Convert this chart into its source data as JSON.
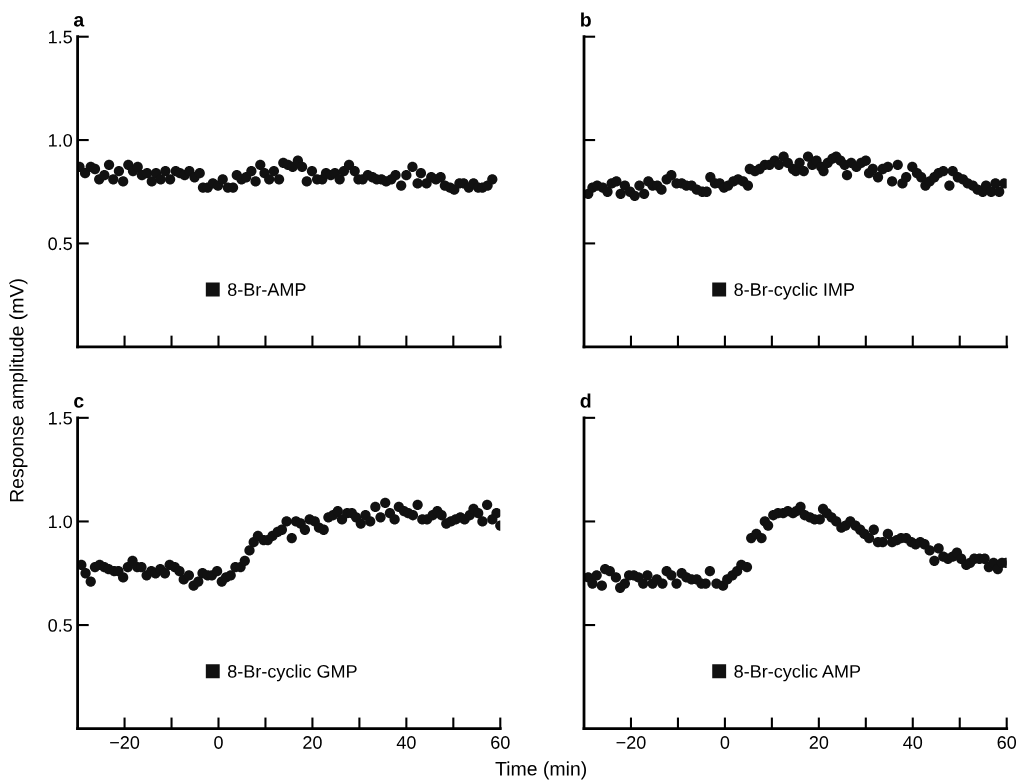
{
  "chart_data": [
    {
      "type": "scatter",
      "title": "a",
      "ylabel": "Response amplitude (mV)",
      "xlim": [
        -30,
        60
      ],
      "ylim": [
        0,
        1.5
      ],
      "marker": "circle",
      "legend": "lower left",
      "tick_labels": "y",
      "xticks": [
        {
          "value": -20,
          "label": null
        },
        {
          "value": -10,
          "label": null
        },
        {
          "value": 0,
          "label": null
        },
        {
          "value": 10,
          "label": null
        },
        {
          "value": 20,
          "label": null
        },
        {
          "value": 30,
          "label": null
        },
        {
          "value": 40,
          "label": null
        },
        {
          "value": 50,
          "label": null
        },
        {
          "value": 60,
          "label": null
        }
      ],
      "yticks": [
        {
          "value": 0.5,
          "label": "0.5"
        },
        {
          "value": 1.0,
          "label": "1.0"
        },
        {
          "value": 1.5,
          "label": "1.5"
        }
      ],
      "series": [
        {
          "name": "8-Br-AMP",
          "color": "#111111",
          "x": [
            -29.6,
            -28.4,
            -27.2,
            -26.3,
            -25.4,
            -24.3,
            -23.3,
            -22.4,
            -21.2,
            -20.3,
            -19.2,
            -18.2,
            -17.2,
            -16.3,
            -15.2,
            -14.2,
            -13.3,
            -12.3,
            -11.3,
            -10.3,
            -9.1,
            -8.2,
            -7.2,
            -6.2,
            -5.1,
            -4.0,
            -3.3,
            -2.3,
            -1.2,
            -0.1,
            0.9,
            2.0,
            3.1,
            3.9,
            4.9,
            5.9,
            7.0,
            7.9,
            8.9,
            9.8,
            10.8,
            11.8,
            12.9,
            13.8,
            14.8,
            15.8,
            16.9,
            17.8,
            18.8,
            19.9,
            21.0,
            22.1,
            22.9,
            23.9,
            24.8,
            25.8,
            26.7,
            27.8,
            29.0,
            29.8,
            30.7,
            31.8,
            32.8,
            33.7,
            34.7,
            35.7,
            36.8,
            37.7,
            38.9,
            40.0,
            41.3,
            42.4,
            43.1,
            44.3,
            45.3,
            46.3,
            47.3,
            48.2,
            49.3,
            50.2,
            51.3,
            52.2,
            53.3,
            54.3,
            55.3,
            56.2,
            57.3,
            58.3
          ],
          "values": [
            0.87,
            0.84,
            0.87,
            0.86,
            0.81,
            0.83,
            0.88,
            0.81,
            0.85,
            0.8,
            0.88,
            0.85,
            0.87,
            0.83,
            0.84,
            0.8,
            0.84,
            0.81,
            0.85,
            0.81,
            0.85,
            0.84,
            0.83,
            0.85,
            0.82,
            0.84,
            0.77,
            0.77,
            0.79,
            0.78,
            0.81,
            0.77,
            0.77,
            0.83,
            0.81,
            0.82,
            0.85,
            0.8,
            0.88,
            0.84,
            0.81,
            0.85,
            0.81,
            0.89,
            0.88,
            0.87,
            0.9,
            0.87,
            0.8,
            0.85,
            0.81,
            0.81,
            0.84,
            0.83,
            0.84,
            0.81,
            0.85,
            0.88,
            0.85,
            0.81,
            0.81,
            0.83,
            0.82,
            0.81,
            0.81,
            0.8,
            0.81,
            0.83,
            0.78,
            0.83,
            0.87,
            0.79,
            0.84,
            0.79,
            0.82,
            0.81,
            0.82,
            0.78,
            0.77,
            0.76,
            0.79,
            0.79,
            0.77,
            0.79,
            0.77,
            0.77,
            0.78,
            0.81
          ]
        }
      ]
    },
    {
      "type": "scatter",
      "title": "b",
      "xlim": [
        -30,
        60
      ],
      "ylim": [
        0,
        1.5
      ],
      "marker": "circle",
      "legend": "lower left",
      "tick_labels": false,
      "xticks": [
        {
          "value": -20,
          "label": null
        },
        {
          "value": -10,
          "label": null
        },
        {
          "value": 0,
          "label": null
        },
        {
          "value": 10,
          "label": null
        },
        {
          "value": 20,
          "label": null
        },
        {
          "value": 30,
          "label": null
        },
        {
          "value": 40,
          "label": null
        },
        {
          "value": 50,
          "label": null
        },
        {
          "value": 60,
          "label": null
        }
      ],
      "yticks": [
        {
          "value": 0.5,
          "label": null
        },
        {
          "value": 1.0,
          "label": null
        },
        {
          "value": 1.5,
          "label": null
        }
      ],
      "series": [
        {
          "name": "8-Br-cyclic IMP",
          "color": "#111111",
          "x": [
            -29.1,
            -28.2,
            -27.2,
            -26.0,
            -25.0,
            -24.1,
            -23.1,
            -22.2,
            -21.3,
            -20.2,
            -19.2,
            -18.2,
            -17.2,
            -16.3,
            -15.4,
            -14.4,
            -13.5,
            -12.4,
            -11.4,
            -10.3,
            -9.2,
            -8.2,
            -7.1,
            -6.0,
            -4.8,
            -3.9,
            -3.1,
            -2.1,
            -1.1,
            -0.2,
            0.7,
            1.8,
            2.8,
            3.9,
            4.9,
            5.3,
            6.4,
            7.4,
            8.5,
            9.5,
            10.6,
            11.5,
            12.5,
            13.4,
            14.5,
            15.1,
            15.9,
            16.8,
            17.7,
            18.6,
            19.5,
            20.5,
            21.0,
            21.9,
            22.9,
            23.7,
            24.6,
            25.5,
            26.0,
            26.9,
            28.0,
            29.0,
            30.0,
            30.7,
            31.5,
            32.6,
            33.6,
            34.7,
            35.6,
            36.8,
            37.8,
            38.6,
            39.9,
            40.9,
            41.8,
            42.7,
            43.6,
            44.6,
            45.5,
            46.5,
            47.8,
            48.5,
            49.6,
            50.7,
            51.7,
            52.8,
            53.8,
            54.9,
            55.6,
            56.7,
            57.6,
            58.4,
            59.5
          ],
          "values": [
            0.74,
            0.77,
            0.78,
            0.77,
            0.75,
            0.79,
            0.8,
            0.74,
            0.78,
            0.75,
            0.73,
            0.78,
            0.74,
            0.8,
            0.78,
            0.78,
            0.76,
            0.81,
            0.83,
            0.79,
            0.79,
            0.78,
            0.78,
            0.76,
            0.75,
            0.75,
            0.82,
            0.79,
            0.79,
            0.77,
            0.78,
            0.8,
            0.81,
            0.8,
            0.78,
            0.86,
            0.85,
            0.86,
            0.88,
            0.88,
            0.9,
            0.88,
            0.92,
            0.89,
            0.86,
            0.85,
            0.89,
            0.85,
            0.92,
            0.88,
            0.9,
            0.87,
            0.85,
            0.89,
            0.91,
            0.92,
            0.9,
            0.88,
            0.83,
            0.89,
            0.87,
            0.89,
            0.9,
            0.84,
            0.86,
            0.82,
            0.86,
            0.87,
            0.8,
            0.88,
            0.79,
            0.82,
            0.87,
            0.84,
            0.82,
            0.78,
            0.8,
            0.82,
            0.84,
            0.85,
            0.78,
            0.85,
            0.82,
            0.81,
            0.79,
            0.78,
            0.76,
            0.75,
            0.78,
            0.75,
            0.79,
            0.75,
            0.79
          ]
        }
      ]
    },
    {
      "type": "scatter",
      "title": "c",
      "xlabel": "Time (min)",
      "xlim": [
        -30,
        60
      ],
      "ylim": [
        0,
        1.5
      ],
      "marker": "circle",
      "legend": "lower left",
      "xticks": [
        {
          "value": -20,
          "label": "−20"
        },
        {
          "value": -10,
          "label": null
        },
        0,
        {
          "value": 10,
          "label": null
        },
        20,
        {
          "value": 30,
          "label": null
        },
        40,
        {
          "value": 50,
          "label": null
        },
        60
      ],
      "yticks": [
        {
          "value": 0.5,
          "label": "0.5"
        },
        {
          "value": 1.0,
          "label": "1.0"
        },
        {
          "value": 1.5,
          "label": "1.5"
        }
      ],
      "series": [
        {
          "name": "8-Br-cyclic GMP",
          "color": "#111111",
          "x": [
            -29.2,
            -28.3,
            -27.2,
            -26.3,
            -25.3,
            -24.3,
            -23.4,
            -22.2,
            -21.3,
            -20.3,
            -19.3,
            -18.3,
            -17.3,
            -16.4,
            -15.3,
            -14.3,
            -13.4,
            -12.4,
            -11.4,
            -10.4,
            -9.3,
            -8.3,
            -7.4,
            -6.3,
            -5.3,
            -4.3,
            -3.4,
            -2.3,
            -1.4,
            -0.3,
            0.7,
            1.6,
            2.6,
            3.6,
            4.7,
            5.6,
            6.6,
            7.5,
            8.4,
            9.6,
            10.5,
            11.5,
            12.6,
            13.5,
            14.5,
            15.6,
            16.5,
            17.5,
            18.4,
            19.4,
            20.5,
            21.4,
            22.4,
            23.4,
            24.4,
            25.4,
            26.3,
            27.4,
            28.4,
            29.3,
            30.3,
            31.3,
            32.3,
            33.4,
            34.5,
            35.5,
            36.5,
            37.5,
            38.4,
            39.5,
            40.4,
            41.4,
            42.4,
            43.4,
            44.4,
            45.6,
            46.6,
            47.5,
            48.5,
            49.5,
            50.5,
            51.5,
            52.4,
            53.5,
            54.3,
            55.3,
            56.2,
            57.2,
            58.3,
            59.2,
            60.0
          ],
          "values": [
            0.79,
            0.75,
            0.71,
            0.78,
            0.79,
            0.78,
            0.77,
            0.76,
            0.76,
            0.73,
            0.78,
            0.81,
            0.78,
            0.78,
            0.74,
            0.76,
            0.75,
            0.77,
            0.75,
            0.79,
            0.78,
            0.76,
            0.72,
            0.74,
            0.69,
            0.71,
            0.75,
            0.74,
            0.74,
            0.76,
            0.71,
            0.73,
            0.74,
            0.78,
            0.78,
            0.81,
            0.86,
            0.9,
            0.93,
            0.91,
            0.91,
            0.93,
            0.95,
            0.96,
            1.0,
            0.92,
            1.0,
            0.99,
            0.96,
            1.01,
            1.0,
            0.97,
            0.96,
            1.02,
            1.03,
            1.05,
            1.01,
            1.04,
            1.04,
            1.02,
            0.99,
            1.03,
            1.0,
            1.07,
            1.02,
            1.09,
            1.04,
            1.01,
            1.07,
            1.05,
            1.04,
            1.03,
            1.08,
            1.01,
            1.01,
            1.03,
            1.05,
            1.03,
            0.99,
            1.0,
            1.01,
            1.02,
            1.01,
            1.03,
            1.06,
            1.04,
            1.0,
            1.08,
            1.01,
            1.04,
            0.98
          ]
        }
      ]
    },
    {
      "type": "scatter",
      "title": "d",
      "xlim": [
        -30,
        60
      ],
      "ylim": [
        0,
        1.5
      ],
      "marker": "circle",
      "legend": "lower left",
      "tick_labels": "x",
      "xticks": [
        {
          "value": -20,
          "label": "−20"
        },
        {
          "value": -10,
          "label": null
        },
        0,
        {
          "value": 10,
          "label": null
        },
        20,
        {
          "value": 30,
          "label": null
        },
        40,
        {
          "value": 50,
          "label": null
        },
        60
      ],
      "yticks": [
        {
          "value": 0.5,
          "label": null
        },
        {
          "value": 1.0,
          "label": null
        },
        {
          "value": 1.5,
          "label": null
        }
      ],
      "series": [
        {
          "name": "8-Br-cyclic AMP",
          "color": "#111111",
          "x": [
            -29.1,
            -28.2,
            -27.3,
            -26.2,
            -25.5,
            -24.5,
            -23.2,
            -22.3,
            -21.3,
            -20.4,
            -19.4,
            -18.4,
            -17.4,
            -16.5,
            -15.4,
            -14.5,
            -13.3,
            -12.4,
            -11.4,
            -10.3,
            -9.2,
            -8.2,
            -7.1,
            -6.0,
            -5.0,
            -4.1,
            -3.2,
            -1.8,
            -0.4,
            0.5,
            1.6,
            2.6,
            3.5,
            4.7,
            5.6,
            6.7,
            7.8,
            8.5,
            9.2,
            10.3,
            11.3,
            12.4,
            13.4,
            14.5,
            15.2,
            16.1,
            17.0,
            18.1,
            19.1,
            20.2,
            20.9,
            21.7,
            22.7,
            23.7,
            24.8,
            25.7,
            26.7,
            27.8,
            28.8,
            29.7,
            30.7,
            31.7,
            32.6,
            33.6,
            34.7,
            35.6,
            36.6,
            37.5,
            38.6,
            39.7,
            40.6,
            41.6,
            42.5,
            43.6,
            44.6,
            45.5,
            46.5,
            47.5,
            48.5,
            49.4,
            50.3,
            51.4,
            52.2,
            53.1,
            54.2,
            55.3,
            56.2,
            57.2,
            58.1,
            59.0,
            59.9
          ],
          "values": [
            0.73,
            0.7,
            0.74,
            0.69,
            0.77,
            0.76,
            0.73,
            0.68,
            0.7,
            0.74,
            0.74,
            0.73,
            0.7,
            0.74,
            0.7,
            0.72,
            0.7,
            0.76,
            0.74,
            0.7,
            0.75,
            0.73,
            0.72,
            0.72,
            0.7,
            0.7,
            0.76,
            0.7,
            0.69,
            0.72,
            0.74,
            0.76,
            0.79,
            0.78,
            0.92,
            0.94,
            0.92,
            1.0,
            0.98,
            1.03,
            1.04,
            1.04,
            1.05,
            1.04,
            1.05,
            1.07,
            1.03,
            1.02,
            1.01,
            1.01,
            1.06,
            1.04,
            1.02,
            1.0,
            0.97,
            0.98,
            1.0,
            0.98,
            0.96,
            0.94,
            0.92,
            0.96,
            0.9,
            0.9,
            0.94,
            0.9,
            0.91,
            0.92,
            0.92,
            0.9,
            0.89,
            0.9,
            0.89,
            0.86,
            0.81,
            0.87,
            0.83,
            0.82,
            0.83,
            0.85,
            0.82,
            0.79,
            0.8,
            0.82,
            0.82,
            0.82,
            0.78,
            0.8,
            0.77,
            0.8,
            0.8
          ]
        }
      ]
    }
  ]
}
